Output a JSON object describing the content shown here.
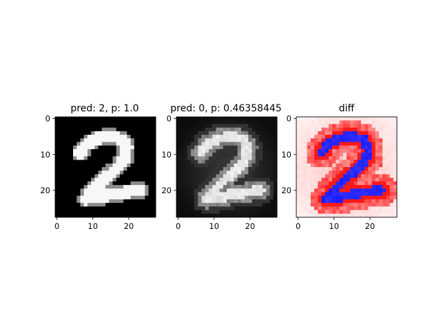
{
  "chart_data": [
    {
      "type": "heatmap",
      "title": "pred: 2, p: 1.0",
      "colormap": "gray",
      "grid": false,
      "xlim": [
        0,
        28
      ],
      "ylim": [
        28,
        0
      ],
      "x_ticks": [
        0,
        10,
        20
      ],
      "y_ticks": [
        0,
        10,
        20
      ],
      "background_value": 0.0,
      "digit_value": 0.97,
      "digit_shape": "2"
    },
    {
      "type": "heatmap",
      "title": "pred: 0, p: 0.46358445",
      "colormap": "gray",
      "grid": false,
      "xlim": [
        0,
        28
      ],
      "ylim": [
        28,
        0
      ],
      "x_ticks": [
        0,
        10,
        20
      ],
      "y_ticks": [
        0,
        10,
        20
      ],
      "background_value": 0.05,
      "digit_value": 0.85,
      "digit_shape": "2"
    },
    {
      "type": "heatmap",
      "title": "diff",
      "colormap": "bwr",
      "grid": false,
      "xlim": [
        0,
        28
      ],
      "ylim": [
        28,
        0
      ],
      "x_ticks": [
        0,
        10,
        20
      ],
      "y_ticks": [
        0,
        10,
        20
      ],
      "background_value": 0.2,
      "digit_value": -0.9
    }
  ]
}
